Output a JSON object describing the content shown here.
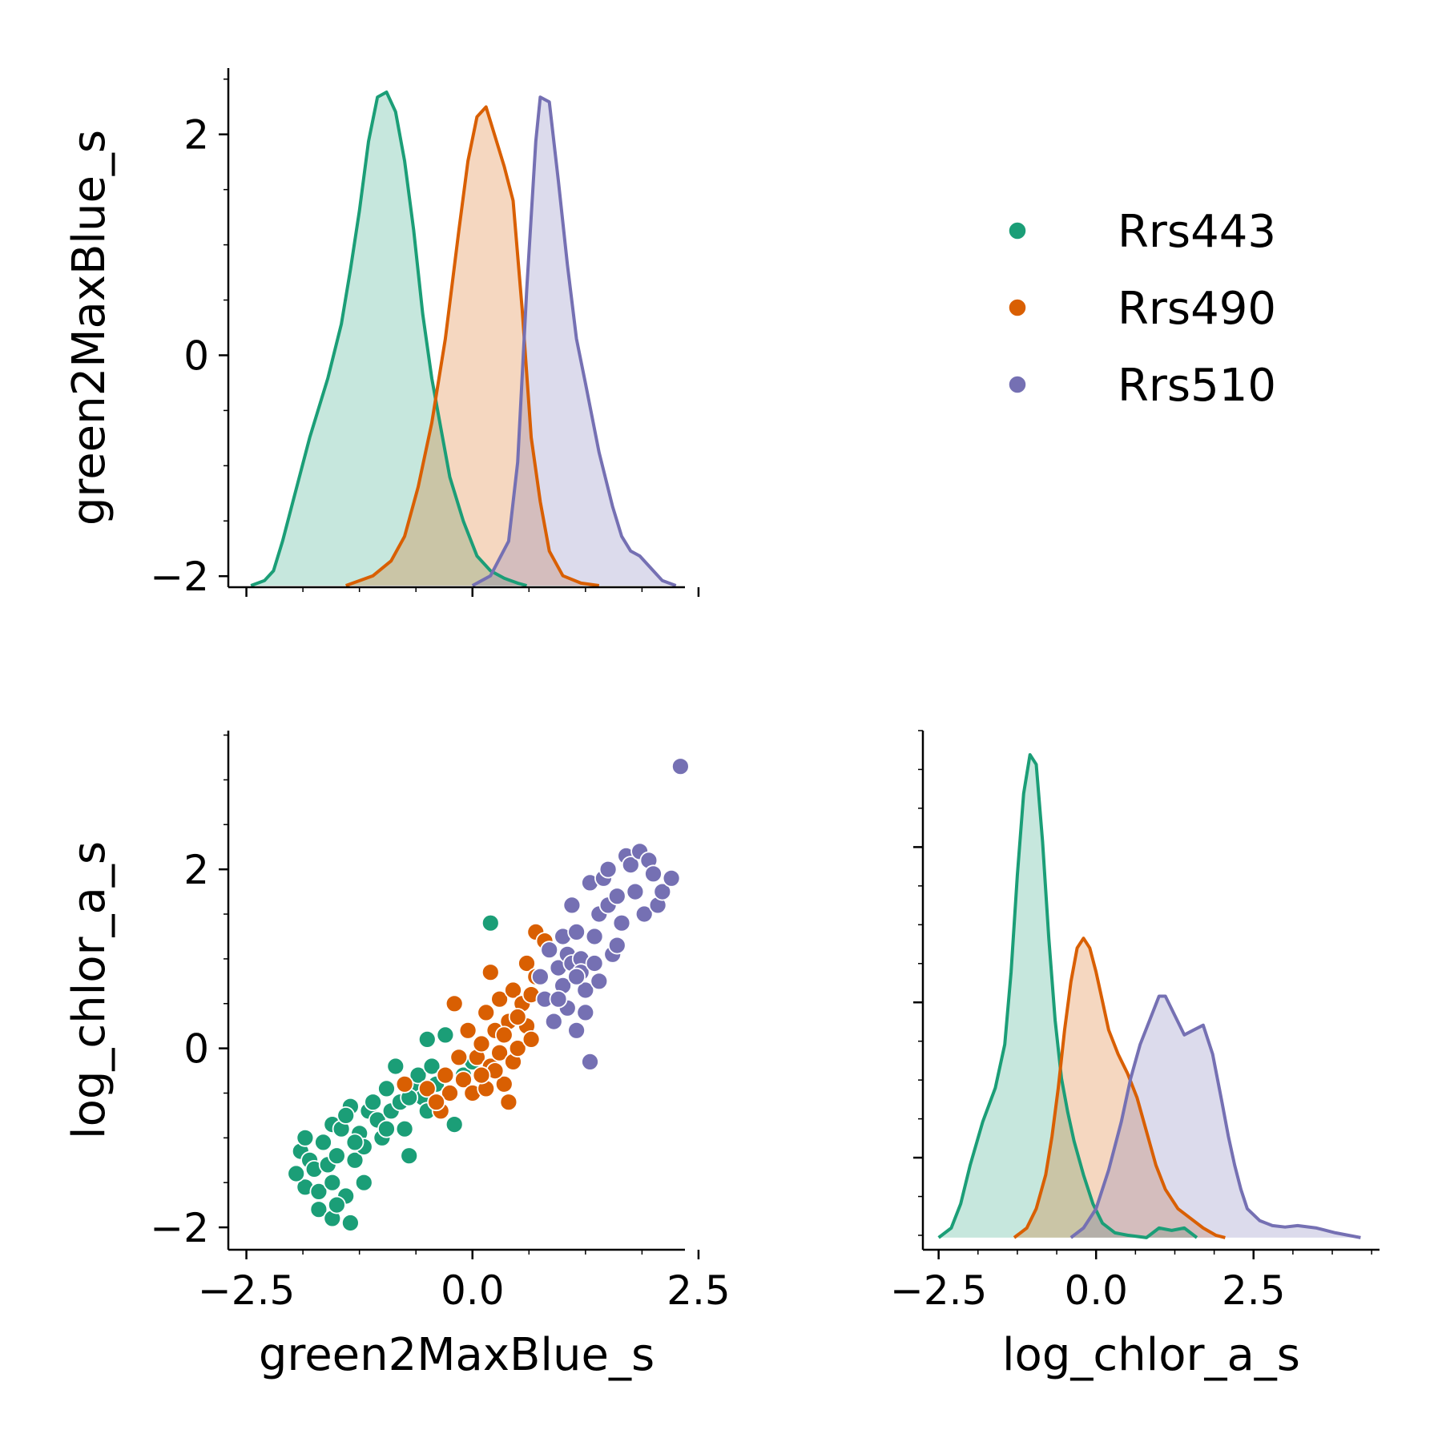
{
  "colors": {
    "Rrs443": "#1b9e77",
    "Rrs490": "#d95f02",
    "Rrs510": "#7570b3"
  },
  "chart_data": [
    {
      "type": "area",
      "panel": "top-left",
      "xlabel": "",
      "ylabel": "green2MaxBlue_s",
      "xlim": [
        -2.7,
        2.35
      ],
      "ylim": [
        -2.1,
        2.6
      ],
      "x_ticks": [
        -2.5,
        0.0,
        2.5
      ],
      "x_tick_labels_shown": false,
      "y_ticks": [
        -2,
        0,
        2
      ],
      "y_tick_labels": [
        "−2",
        "0",
        "2"
      ],
      "grid": false,
      "series": [
        {
          "name": "Rrs443",
          "x": [
            -2.45,
            -2.3,
            -2.2,
            -2.1,
            -2.0,
            -1.8,
            -1.6,
            -1.45,
            -1.35,
            -1.25,
            -1.15,
            -1.05,
            -0.95,
            -0.85,
            -0.75,
            -0.65,
            -0.55,
            -0.45,
            -0.35,
            -0.25,
            -0.1,
            0.05,
            0.2,
            0.35,
            0.5,
            0.6
          ],
          "y": [
            0.0,
            0.01,
            0.03,
            0.09,
            0.16,
            0.3,
            0.42,
            0.53,
            0.64,
            0.76,
            0.9,
            0.99,
            1.0,
            0.96,
            0.86,
            0.72,
            0.55,
            0.42,
            0.32,
            0.22,
            0.13,
            0.06,
            0.03,
            0.015,
            0.005,
            0.0
          ]
        },
        {
          "name": "Rrs490",
          "x": [
            -1.4,
            -1.1,
            -0.9,
            -0.75,
            -0.6,
            -0.45,
            -0.3,
            -0.15,
            -0.05,
            0.05,
            0.15,
            0.25,
            0.35,
            0.45,
            0.55,
            0.65,
            0.75,
            0.85,
            1.0,
            1.2,
            1.4
          ],
          "y": [
            0.0,
            0.02,
            0.05,
            0.1,
            0.2,
            0.33,
            0.5,
            0.72,
            0.86,
            0.95,
            0.97,
            0.91,
            0.85,
            0.78,
            0.56,
            0.3,
            0.17,
            0.07,
            0.02,
            0.005,
            0.0
          ]
        },
        {
          "name": "Rrs510",
          "x": [
            0.0,
            0.2,
            0.4,
            0.5,
            0.6,
            0.7,
            0.75,
            0.85,
            0.95,
            1.05,
            1.15,
            1.25,
            1.4,
            1.55,
            1.65,
            1.75,
            1.85,
            2.0,
            2.1,
            2.25
          ],
          "y": [
            0.0,
            0.02,
            0.09,
            0.25,
            0.6,
            0.9,
            0.99,
            0.98,
            0.82,
            0.65,
            0.5,
            0.41,
            0.27,
            0.16,
            0.1,
            0.07,
            0.06,
            0.03,
            0.01,
            0.0
          ]
        }
      ]
    },
    {
      "type": "scatter",
      "panel": "bottom-left",
      "xlabel": "green2MaxBlue_s",
      "ylabel": "log_chlor_a_s",
      "xlim": [
        -2.7,
        2.35
      ],
      "ylim": [
        -2.25,
        3.55
      ],
      "x_ticks": [
        -2.5,
        0.0,
        2.5
      ],
      "x_tick_labels": [
        "−2.5",
        "0.0",
        "2.5"
      ],
      "y_ticks": [
        -2,
        0,
        2
      ],
      "y_tick_labels": [
        "−2",
        "0",
        "2"
      ],
      "grid": false,
      "series": [
        {
          "name": "Rrs443",
          "points": [
            [
              -1.9,
              -1.15
            ],
            [
              -1.85,
              -1.0
            ],
            [
              -1.8,
              -1.25
            ],
            [
              -1.75,
              -1.35
            ],
            [
              -1.85,
              -1.55
            ],
            [
              -1.7,
              -1.6
            ],
            [
              -1.65,
              -1.05
            ],
            [
              -1.6,
              -1.3
            ],
            [
              -1.55,
              -1.5
            ],
            [
              -1.55,
              -0.85
            ],
            [
              -1.45,
              -0.9
            ],
            [
              -1.5,
              -1.2
            ],
            [
              -1.4,
              -1.65
            ],
            [
              -1.35,
              -0.65
            ],
            [
              -1.3,
              -1.25
            ],
            [
              -1.25,
              -0.95
            ],
            [
              -1.2,
              -1.1
            ],
            [
              -1.15,
              -0.7
            ],
            [
              -1.1,
              -0.6
            ],
            [
              -1.05,
              -0.8
            ],
            [
              -1.0,
              -1.0
            ],
            [
              -0.95,
              -0.45
            ],
            [
              -0.9,
              -0.7
            ],
            [
              -0.85,
              -0.2
            ],
            [
              -0.8,
              -0.6
            ],
            [
              -0.75,
              -0.9
            ],
            [
              -0.7,
              -1.2
            ],
            [
              -0.65,
              -0.45
            ],
            [
              -0.6,
              -0.3
            ],
            [
              -0.55,
              -0.55
            ],
            [
              -0.5,
              -0.7
            ],
            [
              -0.45,
              -0.2
            ],
            [
              -0.4,
              -0.4
            ],
            [
              -0.3,
              0.15
            ],
            [
              -0.25,
              -0.5
            ],
            [
              -0.2,
              -0.85
            ],
            [
              -0.5,
              0.1
            ],
            [
              -1.7,
              -1.8
            ],
            [
              -1.55,
              -1.9
            ],
            [
              -1.35,
              -1.95
            ],
            [
              -1.5,
              -1.75
            ],
            [
              -1.95,
              -1.4
            ],
            [
              -1.2,
              -1.5
            ],
            [
              0.2,
              1.4
            ],
            [
              -0.1,
              -0.3
            ],
            [
              0.0,
              -0.15
            ],
            [
              -1.4,
              -0.75
            ],
            [
              -1.3,
              -1.05
            ],
            [
              -0.95,
              -0.9
            ],
            [
              -0.7,
              -0.55
            ]
          ]
        },
        {
          "name": "Rrs490",
          "points": [
            [
              -0.75,
              -0.4
            ],
            [
              -0.5,
              -0.45
            ],
            [
              -0.35,
              -0.7
            ],
            [
              -0.3,
              -0.3
            ],
            [
              -0.25,
              -0.5
            ],
            [
              -0.2,
              0.5
            ],
            [
              -0.15,
              -0.1
            ],
            [
              -0.1,
              -0.35
            ],
            [
              -0.05,
              0.2
            ],
            [
              0.0,
              -0.5
            ],
            [
              0.05,
              -0.1
            ],
            [
              0.1,
              0.05
            ],
            [
              0.15,
              0.4
            ],
            [
              0.2,
              -0.2
            ],
            [
              0.2,
              0.85
            ],
            [
              0.25,
              0.2
            ],
            [
              0.3,
              -0.05
            ],
            [
              0.3,
              0.55
            ],
            [
              0.35,
              -0.4
            ],
            [
              0.4,
              0.3
            ],
            [
              0.45,
              -0.15
            ],
            [
              0.45,
              0.65
            ],
            [
              0.5,
              0.0
            ],
            [
              0.55,
              0.5
            ],
            [
              0.6,
              0.25
            ],
            [
              0.6,
              0.95
            ],
            [
              0.65,
              0.6
            ],
            [
              0.7,
              1.3
            ],
            [
              0.65,
              0.1
            ],
            [
              0.15,
              -0.45
            ],
            [
              0.25,
              -0.25
            ],
            [
              0.35,
              0.15
            ],
            [
              0.4,
              -0.6
            ],
            [
              0.5,
              0.35
            ],
            [
              -0.4,
              -0.6
            ],
            [
              0.1,
              -0.3
            ],
            [
              0.7,
              0.8
            ],
            [
              0.8,
              1.2
            ]
          ]
        },
        {
          "name": "Rrs510",
          "points": [
            [
              0.75,
              0.8
            ],
            [
              0.8,
              0.55
            ],
            [
              0.85,
              1.1
            ],
            [
              0.9,
              0.3
            ],
            [
              0.95,
              0.9
            ],
            [
              1.0,
              0.7
            ],
            [
              1.0,
              1.25
            ],
            [
              1.05,
              0.45
            ],
            [
              1.05,
              1.05
            ],
            [
              1.1,
              0.95
            ],
            [
              1.1,
              1.6
            ],
            [
              1.15,
              1.3
            ],
            [
              1.15,
              0.2
            ],
            [
              1.2,
              1.0
            ],
            [
              1.25,
              0.65
            ],
            [
              1.3,
              1.85
            ],
            [
              1.3,
              -0.15
            ],
            [
              1.35,
              1.25
            ],
            [
              1.4,
              0.75
            ],
            [
              1.4,
              1.5
            ],
            [
              1.45,
              1.9
            ],
            [
              1.5,
              1.6
            ],
            [
              1.5,
              2.0
            ],
            [
              1.55,
              1.05
            ],
            [
              1.6,
              1.7
            ],
            [
              1.65,
              1.4
            ],
            [
              1.7,
              2.15
            ],
            [
              1.75,
              2.05
            ],
            [
              1.8,
              1.75
            ],
            [
              1.85,
              2.2
            ],
            [
              1.9,
              1.5
            ],
            [
              1.95,
              2.1
            ],
            [
              2.0,
              1.95
            ],
            [
              2.05,
              1.6
            ],
            [
              2.1,
              1.75
            ],
            [
              2.2,
              1.9
            ],
            [
              2.3,
              3.15
            ],
            [
              1.2,
              0.85
            ],
            [
              0.95,
              0.55
            ],
            [
              1.25,
              0.4
            ],
            [
              1.6,
              1.15
            ],
            [
              1.15,
              0.8
            ],
            [
              1.35,
              0.95
            ]
          ]
        }
      ]
    },
    {
      "type": "area",
      "panel": "bottom-right",
      "xlabel": "log_chlor_a_s",
      "ylabel": "",
      "xlim": [
        -2.75,
        4.5
      ],
      "ylim": [
        -0.025,
        1.05
      ],
      "x_ticks": [
        -2.5,
        0.0,
        2.5
      ],
      "x_tick_labels": [
        "−2.5",
        "0.0",
        "2.5"
      ],
      "y_ticks_shown_without_labels": true,
      "grid": false,
      "series": [
        {
          "name": "Rrs443",
          "x": [
            -2.5,
            -2.3,
            -2.15,
            -2.0,
            -1.8,
            -1.6,
            -1.45,
            -1.35,
            -1.25,
            -1.15,
            -1.05,
            -0.95,
            -0.85,
            -0.75,
            -0.65,
            -0.55,
            -0.45,
            -0.35,
            -0.2,
            -0.05,
            0.1,
            0.3,
            0.5,
            0.8,
            1.0,
            1.2,
            1.4,
            1.6
          ],
          "y": [
            0.0,
            0.02,
            0.07,
            0.15,
            0.24,
            0.31,
            0.4,
            0.55,
            0.75,
            0.92,
            1.0,
            0.98,
            0.82,
            0.62,
            0.45,
            0.33,
            0.26,
            0.2,
            0.13,
            0.07,
            0.03,
            0.01,
            0.005,
            0.0,
            0.02,
            0.015,
            0.02,
            0.0
          ]
        },
        {
          "name": "Rrs490",
          "x": [
            -1.3,
            -1.1,
            -0.95,
            -0.8,
            -0.7,
            -0.6,
            -0.5,
            -0.4,
            -0.3,
            -0.2,
            -0.1,
            0.0,
            0.1,
            0.2,
            0.35,
            0.5,
            0.65,
            0.8,
            0.95,
            1.1,
            1.3,
            1.5,
            1.7,
            1.9,
            2.05
          ],
          "y": [
            0.0,
            0.02,
            0.06,
            0.13,
            0.21,
            0.31,
            0.43,
            0.53,
            0.6,
            0.62,
            0.6,
            0.55,
            0.49,
            0.43,
            0.38,
            0.34,
            0.29,
            0.22,
            0.15,
            0.1,
            0.06,
            0.04,
            0.02,
            0.005,
            0.0
          ]
        },
        {
          "name": "Rrs510",
          "x": [
            -0.4,
            -0.2,
            0.0,
            0.2,
            0.4,
            0.55,
            0.7,
            0.85,
            1.0,
            1.1,
            1.25,
            1.4,
            1.55,
            1.7,
            1.85,
            2.0,
            2.1,
            2.2,
            2.3,
            2.4,
            2.6,
            2.8,
            3.0,
            3.2,
            3.5,
            3.8,
            4.2
          ],
          "y": [
            0.0,
            0.02,
            0.06,
            0.14,
            0.24,
            0.33,
            0.4,
            0.45,
            0.5,
            0.5,
            0.46,
            0.42,
            0.43,
            0.44,
            0.38,
            0.28,
            0.21,
            0.15,
            0.1,
            0.06,
            0.035,
            0.025,
            0.022,
            0.025,
            0.02,
            0.01,
            0.0
          ]
        }
      ]
    }
  ],
  "legend": {
    "placement": "upper-right",
    "entries": [
      "Rrs443",
      "Rrs490",
      "Rrs510"
    ]
  }
}
